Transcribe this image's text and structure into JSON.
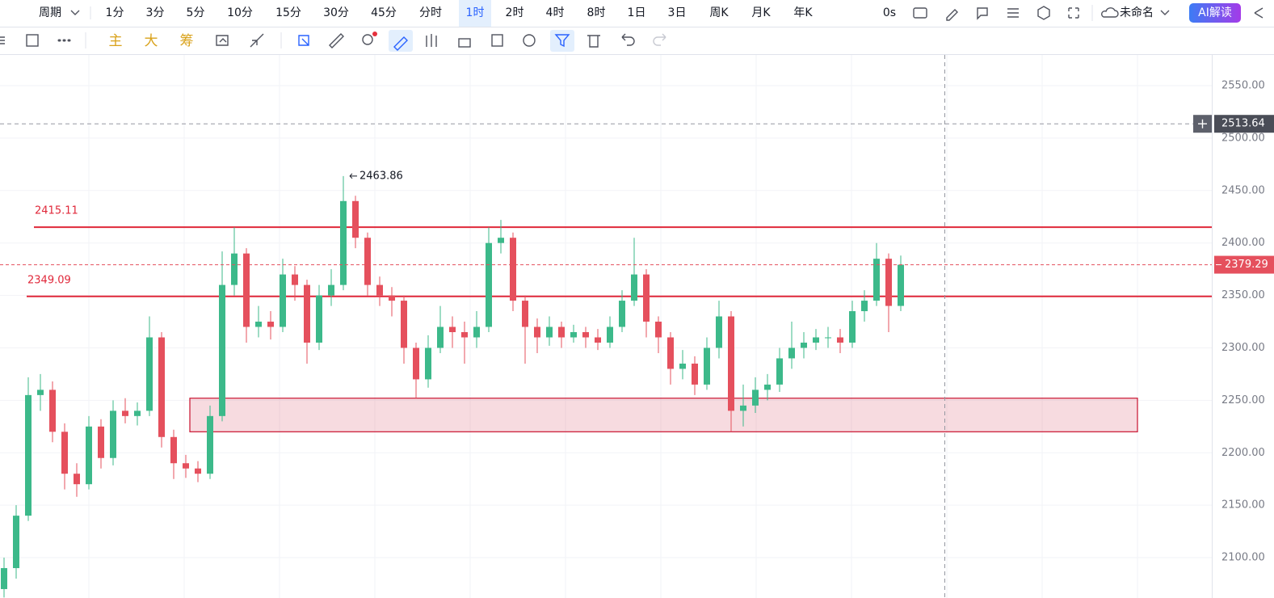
{
  "toolbar": {
    "period": "周期",
    "intervals": [
      "1分",
      "3分",
      "5分",
      "10分",
      "15分",
      "30分",
      "45分",
      "分时",
      "1时",
      "2时",
      "4时",
      "8时",
      "1日",
      "3日",
      "周K",
      "月K",
      "年K"
    ],
    "selected_index": 8,
    "timer": "0s",
    "layout_name": "未命名",
    "ai_button": "AI解读"
  },
  "drawing_toolbar": {
    "indicators": [
      "主",
      "大",
      "筹"
    ]
  },
  "chart_data": {
    "type": "candlestick",
    "open": [
      2070,
      2090,
      2140,
      2255,
      2260,
      2220,
      2180,
      2170,
      2225,
      2195,
      2240,
      2235,
      2240,
      2310,
      2215,
      2190,
      2185,
      2180,
      2235,
      2360,
      2390,
      2320,
      2325,
      2320,
      2370,
      2360,
      2305,
      2350,
      2360,
      2440,
      2405,
      2360,
      2350,
      2345,
      2300,
      2270,
      2300,
      2320,
      2315,
      2310,
      2320,
      2400,
      2405,
      2345,
      2320,
      2310,
      2320,
      2310,
      2315,
      2310,
      2305,
      2320,
      2345,
      2370,
      2325,
      2310,
      2280,
      2285,
      2265,
      2300,
      2330,
      2240,
      2245,
      2260,
      2265,
      2290,
      2300,
      2305,
      2310,
      2310,
      2305,
      2335,
      2345,
      2385,
      2340
    ],
    "high": [
      2100,
      2150,
      2272,
      2275,
      2268,
      2228,
      2190,
      2235,
      2232,
      2250,
      2252,
      2248,
      2330,
      2315,
      2222,
      2198,
      2192,
      2245,
      2392,
      2415,
      2395,
      2340,
      2335,
      2385,
      2378,
      2365,
      2360,
      2375,
      2463.86,
      2445,
      2410,
      2368,
      2358,
      2350,
      2305,
      2312,
      2340,
      2330,
      2325,
      2335,
      2415,
      2422,
      2410,
      2350,
      2328,
      2330,
      2325,
      2322,
      2320,
      2318,
      2330,
      2355,
      2405,
      2375,
      2330,
      2315,
      2298,
      2292,
      2310,
      2345,
      2335,
      2265,
      2272,
      2275,
      2300,
      2325,
      2315,
      2318,
      2320,
      2318,
      2345,
      2355,
      2400,
      2390,
      2388
    ],
    "low": [
      2062,
      2080,
      2135,
      2240,
      2210,
      2165,
      2158,
      2165,
      2185,
      2188,
      2228,
      2226,
      2235,
      2205,
      2175,
      2176,
      2172,
      2175,
      2230,
      2350,
      2305,
      2310,
      2308,
      2315,
      2345,
      2285,
      2298,
      2340,
      2355,
      2395,
      2350,
      2340,
      2330,
      2285,
      2252,
      2262,
      2295,
      2300,
      2285,
      2300,
      2315,
      2390,
      2335,
      2285,
      2295,
      2302,
      2300,
      2305,
      2300,
      2298,
      2300,
      2315,
      2340,
      2310,
      2295,
      2265,
      2270,
      2255,
      2260,
      2290,
      2220,
      2225,
      2238,
      2250,
      2258,
      2280,
      2290,
      2298,
      2300,
      2295,
      2300,
      2325,
      2340,
      2315,
      2335
    ],
    "close": [
      2090,
      2140,
      2255,
      2260,
      2220,
      2180,
      2170,
      2225,
      2195,
      2240,
      2235,
      2240,
      2310,
      2215,
      2190,
      2185,
      2180,
      2235,
      2360,
      2390,
      2320,
      2325,
      2320,
      2370,
      2360,
      2305,
      2350,
      2360,
      2440,
      2405,
      2360,
      2350,
      2345,
      2300,
      2270,
      2300,
      2320,
      2315,
      2310,
      2320,
      2400,
      2405,
      2345,
      2320,
      2310,
      2320,
      2310,
      2315,
      2310,
      2305,
      2320,
      2345,
      2370,
      2325,
      2310,
      2280,
      2285,
      2265,
      2300,
      2330,
      2240,
      2245,
      2260,
      2265,
      2290,
      2300,
      2305,
      2310,
      2310,
      2305,
      2335,
      2345,
      2385,
      2340,
      2379.29
    ],
    "up_color": "#3cb98a",
    "down_color": "#e5505d",
    "ylim": [
      2061.5,
      2579.3
    ],
    "yticks": [
      {
        "value": 2100,
        "label": "2100.00"
      },
      {
        "value": 2150,
        "label": "2150.00"
      },
      {
        "value": 2200,
        "label": "2200.00"
      },
      {
        "value": 2250,
        "label": "2250.00"
      },
      {
        "value": 2300,
        "label": "2300.00"
      },
      {
        "value": 2350,
        "label": "2350.00"
      },
      {
        "value": 2400,
        "label": "2400.00"
      },
      {
        "value": 2450,
        "label": "2450.00"
      },
      {
        "value": 2500,
        "label": "2500.00"
      },
      {
        "value": 2550,
        "label": "2550.00"
      }
    ],
    "grid": true,
    "horizontal_lines": [
      {
        "value": 2415.11,
        "color": "#e0283a"
      },
      {
        "value": 2349.09,
        "color": "#e0283a"
      }
    ],
    "zone": {
      "low": 2220,
      "high": 2252,
      "color": "#c8102e"
    },
    "crosshair": {
      "value": 2513.64
    },
    "high_marker_index": 28
  }
}
